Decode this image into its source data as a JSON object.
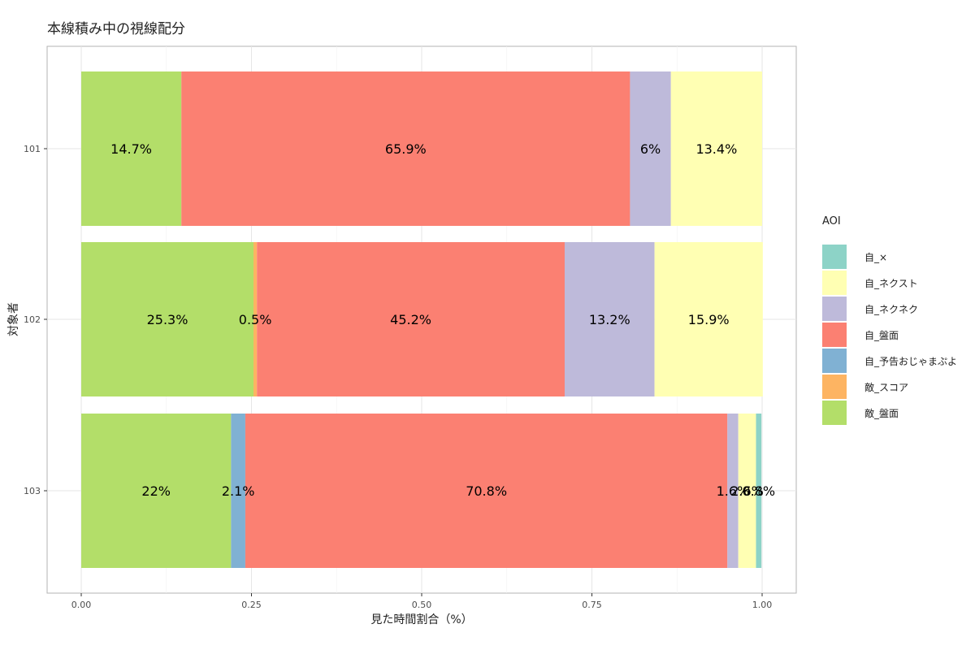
{
  "chart_data": {
    "type": "bar",
    "orientation": "horizontal",
    "stacked": true,
    "title": "本線積み中の視線配分",
    "xlabel": "見た時間割合（%）",
    "ylabel": "対象者",
    "xlim": [
      0,
      1
    ],
    "x_ticks": [
      "0.00",
      "0.25",
      "0.50",
      "0.75",
      "1.00"
    ],
    "x_tick_values": [
      0,
      0.25,
      0.5,
      0.75,
      1
    ],
    "grid": true,
    "legend_position": "right",
    "legend_title": "AOI",
    "categories": [
      "101",
      "102",
      "103"
    ],
    "series": [
      {
        "name": "敵_盤面",
        "color": "#b3de69",
        "values": [
          0.147,
          0.253,
          0.22
        ],
        "labels": [
          "14.7%",
          "25.3%",
          "22%"
        ]
      },
      {
        "name": "敵_スコア",
        "color": "#fdb462",
        "values": [
          0,
          0.005,
          0
        ],
        "labels": [
          "",
          "0.5%",
          ""
        ]
      },
      {
        "name": "自_予告おじゃまぷよ",
        "color": "#80b1d3",
        "values": [
          0,
          0,
          0.021
        ],
        "labels": [
          "",
          "",
          "2.1%"
        ]
      },
      {
        "name": "自_盤面",
        "color": "#fb8072",
        "values": [
          0.659,
          0.452,
          0.708
        ],
        "labels": [
          "65.9%",
          "45.2%",
          "70.8%"
        ]
      },
      {
        "name": "自_ネクネク",
        "color": "#bebada",
        "values": [
          0.06,
          0.132,
          0.016
        ],
        "labels": [
          "6%",
          "13.2%",
          "1.6%"
        ]
      },
      {
        "name": "自_ネクスト",
        "color": "#ffffb3",
        "values": [
          0.134,
          0.159,
          0.026
        ],
        "labels": [
          "13.4%",
          "15.9%",
          "2.6%"
        ]
      },
      {
        "name": "自_×",
        "color": "#8dd3c7",
        "values": [
          0,
          0,
          0.008
        ],
        "labels": [
          "",
          "",
          "0.8%"
        ]
      }
    ],
    "legend_order": [
      "自_×",
      "自_ネクスト",
      "自_ネクネク",
      "自_盤面",
      "自_予告おじゃまぷよ",
      "敵_スコア",
      "敵_盤面"
    ]
  }
}
